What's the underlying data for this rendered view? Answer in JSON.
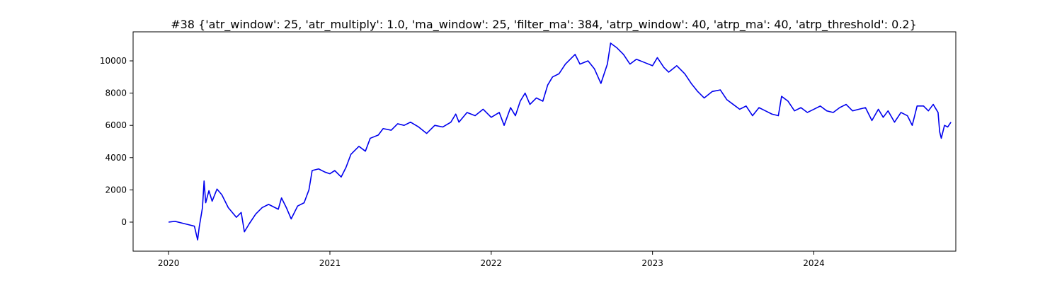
{
  "chart_data": {
    "type": "line",
    "title": "#38 {'atr_window': 25, 'atr_multiply': 1.0, 'ma_window': 25, 'filter_ma': 384, 'atrp_window': 40, 'atrp_ma': 40, 'atrp_threshold': 0.2}",
    "xlabel": "",
    "ylabel": "",
    "xlim": [
      2019.78,
      2024.88
    ],
    "ylim": [
      -1800,
      11800
    ],
    "grid": false,
    "x_ticks": [
      {
        "value": 2020,
        "label": "2020"
      },
      {
        "value": 2021,
        "label": "2021"
      },
      {
        "value": 2022,
        "label": "2022"
      },
      {
        "value": 2023,
        "label": "2023"
      },
      {
        "value": 2024,
        "label": "2024"
      }
    ],
    "y_ticks": [
      {
        "value": 0,
        "label": "0"
      },
      {
        "value": 2000,
        "label": "2000"
      },
      {
        "value": 4000,
        "label": "4000"
      },
      {
        "value": 6000,
        "label": "6000"
      },
      {
        "value": 8000,
        "label": "8000"
      },
      {
        "value": 10000,
        "label": "10000"
      }
    ],
    "series": [
      {
        "color": "#0000ee",
        "points": [
          [
            2020.0,
            0
          ],
          [
            2020.04,
            50
          ],
          [
            2020.08,
            -50
          ],
          [
            2020.12,
            -150
          ],
          [
            2020.16,
            -250
          ],
          [
            2020.18,
            -1100
          ],
          [
            2020.19,
            -300
          ],
          [
            2020.21,
            900
          ],
          [
            2020.22,
            2550
          ],
          [
            2020.23,
            1200
          ],
          [
            2020.25,
            1950
          ],
          [
            2020.27,
            1300
          ],
          [
            2020.3,
            2050
          ],
          [
            2020.33,
            1700
          ],
          [
            2020.37,
            900
          ],
          [
            2020.42,
            300
          ],
          [
            2020.45,
            600
          ],
          [
            2020.47,
            -600
          ],
          [
            2020.5,
            -100
          ],
          [
            2020.54,
            500
          ],
          [
            2020.58,
            900
          ],
          [
            2020.62,
            1100
          ],
          [
            2020.68,
            800
          ],
          [
            2020.7,
            1500
          ],
          [
            2020.73,
            900
          ],
          [
            2020.76,
            200
          ],
          [
            2020.8,
            1000
          ],
          [
            2020.84,
            1200
          ],
          [
            2020.87,
            2000
          ],
          [
            2020.89,
            3200
          ],
          [
            2020.93,
            3300
          ],
          [
            2020.97,
            3100
          ],
          [
            2021.0,
            3000
          ],
          [
            2021.03,
            3200
          ],
          [
            2021.07,
            2800
          ],
          [
            2021.1,
            3400
          ],
          [
            2021.13,
            4200
          ],
          [
            2021.18,
            4700
          ],
          [
            2021.22,
            4400
          ],
          [
            2021.25,
            5200
          ],
          [
            2021.3,
            5400
          ],
          [
            2021.33,
            5800
          ],
          [
            2021.38,
            5700
          ],
          [
            2021.42,
            6100
          ],
          [
            2021.46,
            6000
          ],
          [
            2021.5,
            6200
          ],
          [
            2021.55,
            5900
          ],
          [
            2021.6,
            5500
          ],
          [
            2021.65,
            6000
          ],
          [
            2021.7,
            5900
          ],
          [
            2021.75,
            6200
          ],
          [
            2021.78,
            6700
          ],
          [
            2021.8,
            6200
          ],
          [
            2021.85,
            6800
          ],
          [
            2021.9,
            6600
          ],
          [
            2021.95,
            7000
          ],
          [
            2022.0,
            6500
          ],
          [
            2022.05,
            6800
          ],
          [
            2022.08,
            6000
          ],
          [
            2022.12,
            7100
          ],
          [
            2022.15,
            6600
          ],
          [
            2022.18,
            7500
          ],
          [
            2022.21,
            8000
          ],
          [
            2022.24,
            7300
          ],
          [
            2022.28,
            7700
          ],
          [
            2022.32,
            7500
          ],
          [
            2022.35,
            8500
          ],
          [
            2022.38,
            9000
          ],
          [
            2022.42,
            9200
          ],
          [
            2022.46,
            9800
          ],
          [
            2022.5,
            10200
          ],
          [
            2022.52,
            10400
          ],
          [
            2022.55,
            9800
          ],
          [
            2022.6,
            10000
          ],
          [
            2022.64,
            9500
          ],
          [
            2022.68,
            8600
          ],
          [
            2022.72,
            9800
          ],
          [
            2022.74,
            11100
          ],
          [
            2022.78,
            10800
          ],
          [
            2022.82,
            10400
          ],
          [
            2022.86,
            9800
          ],
          [
            2022.9,
            10100
          ],
          [
            2022.95,
            9900
          ],
          [
            2023.0,
            9700
          ],
          [
            2023.03,
            10200
          ],
          [
            2023.07,
            9600
          ],
          [
            2023.1,
            9300
          ],
          [
            2023.15,
            9700
          ],
          [
            2023.2,
            9200
          ],
          [
            2023.24,
            8600
          ],
          [
            2023.28,
            8100
          ],
          [
            2023.32,
            7700
          ],
          [
            2023.37,
            8100
          ],
          [
            2023.42,
            8200
          ],
          [
            2023.46,
            7600
          ],
          [
            2023.5,
            7300
          ],
          [
            2023.54,
            7000
          ],
          [
            2023.58,
            7200
          ],
          [
            2023.62,
            6600
          ],
          [
            2023.66,
            7100
          ],
          [
            2023.7,
            6900
          ],
          [
            2023.74,
            6700
          ],
          [
            2023.78,
            6600
          ],
          [
            2023.8,
            7800
          ],
          [
            2023.84,
            7500
          ],
          [
            2023.88,
            6900
          ],
          [
            2023.92,
            7100
          ],
          [
            2023.96,
            6800
          ],
          [
            2024.0,
            7000
          ],
          [
            2024.04,
            7200
          ],
          [
            2024.08,
            6900
          ],
          [
            2024.12,
            6800
          ],
          [
            2024.16,
            7100
          ],
          [
            2024.2,
            7300
          ],
          [
            2024.24,
            6900
          ],
          [
            2024.28,
            7000
          ],
          [
            2024.32,
            7100
          ],
          [
            2024.36,
            6300
          ],
          [
            2024.4,
            7000
          ],
          [
            2024.43,
            6500
          ],
          [
            2024.46,
            6900
          ],
          [
            2024.5,
            6200
          ],
          [
            2024.54,
            6800
          ],
          [
            2024.58,
            6600
          ],
          [
            2024.61,
            6000
          ],
          [
            2024.64,
            7200
          ],
          [
            2024.68,
            7200
          ],
          [
            2024.71,
            6900
          ],
          [
            2024.74,
            7300
          ],
          [
            2024.77,
            6800
          ],
          [
            2024.78,
            5600
          ],
          [
            2024.79,
            5200
          ],
          [
            2024.81,
            6000
          ],
          [
            2024.83,
            5900
          ],
          [
            2024.85,
            6200
          ]
        ]
      }
    ]
  }
}
